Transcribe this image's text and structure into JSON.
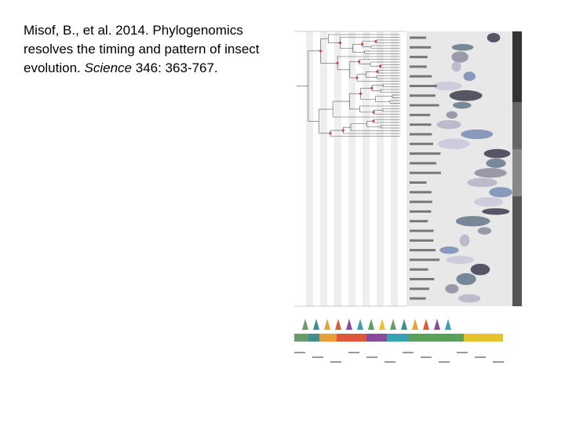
{
  "citation": {
    "lines": [
      "Misof, B., et al. 2014. Phylogenomics",
      "resolves the timing and pattern of insect",
      "evolution."
    ],
    "journal": "Science",
    "reference": "346: 363-767."
  }
}
